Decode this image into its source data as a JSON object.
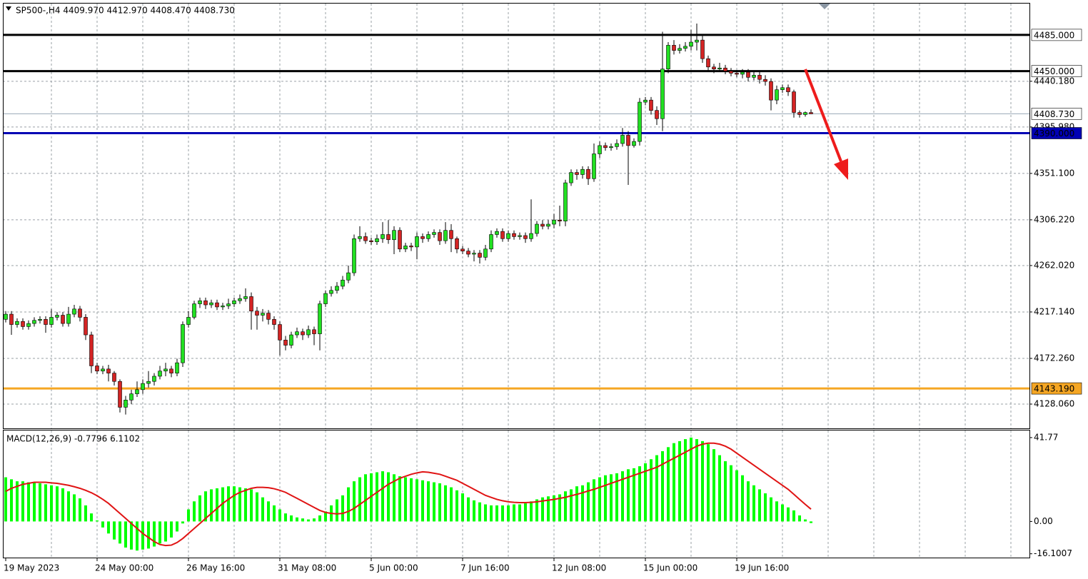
{
  "chart_data": [
    {
      "type": "candlestick",
      "title": "SP500-,H4 4409.970 4412.970 4408.470 4408.730",
      "categories": [
        "19 May 2023",
        null,
        null,
        null,
        null,
        null,
        null,
        null,
        null,
        null,
        null,
        null,
        null,
        null,
        null,
        null,
        "24 May 00:00",
        null,
        null,
        null,
        null,
        null,
        null,
        null,
        null,
        null,
        null,
        null,
        null,
        null,
        null,
        null,
        "26 May 16:00",
        null,
        null,
        null,
        null,
        null,
        null,
        null,
        null,
        null,
        null,
        null,
        null,
        null,
        null,
        null,
        "31 May 08:00",
        null,
        null,
        null,
        null,
        null,
        null,
        null,
        null,
        null,
        null,
        null,
        null,
        null,
        null,
        null,
        "5 Jun 00:00",
        null,
        null,
        null,
        null,
        null,
        null,
        null,
        null,
        null,
        null,
        null,
        null,
        null,
        null,
        null,
        "7 Jun 16:00",
        null,
        null,
        null,
        null,
        null,
        null,
        null,
        null,
        null,
        null,
        null,
        null,
        null,
        null,
        null,
        "12 Jun 08:00",
        null,
        null,
        null,
        null,
        null,
        null,
        null,
        null,
        null,
        null,
        null,
        null,
        null,
        null,
        null,
        "15 Jun 00:00",
        null,
        null,
        null,
        null,
        null,
        null,
        null,
        null,
        null,
        null,
        null,
        null,
        null,
        null,
        null,
        "19 Jun 16:00",
        null,
        null,
        null,
        null,
        null,
        null,
        null,
        null,
        null,
        null,
        null,
        null,
        null
      ],
      "open": [
        4210,
        4215,
        4205,
        4208,
        4203,
        4206,
        4209,
        4210,
        4205,
        4212,
        4214,
        4206,
        4215,
        4220,
        4212,
        4195,
        4165,
        4160,
        4162,
        4158,
        4150,
        4125,
        4132,
        4138,
        4142,
        4148,
        4150,
        4155,
        4160,
        4162,
        4158,
        4168,
        4205,
        4212,
        4225,
        4228,
        4224,
        4226,
        4222,
        4223,
        4225,
        4228,
        4230,
        4232,
        4218,
        4214,
        4216,
        4210,
        4205,
        4190,
        4185,
        4195,
        4198,
        4195,
        4200,
        4196,
        4225,
        4235,
        4238,
        4242,
        4248,
        4255,
        4288,
        4290,
        4286,
        4285,
        4288,
        4292,
        4287,
        4296,
        4278,
        4281,
        4280,
        4290,
        4288,
        4292,
        4294,
        4286,
        4296,
        4288,
        4278,
        4276,
        4273,
        4274,
        4270,
        4278,
        4292,
        4295,
        4288,
        4293,
        4290,
        4291,
        4288,
        4293,
        4302,
        4300,
        4302,
        4306,
        4305,
        4342,
        4352,
        4350,
        4355,
        4346,
        4370,
        4378,
        4376,
        4377,
        4380,
        4388,
        4378,
        4382,
        4420,
        4422,
        4412,
        4404,
        4452,
        4475,
        4470,
        4472,
        4474,
        4478,
        4480,
        4462,
        4454,
        4452,
        4453,
        4450,
        4448,
        4447,
        4449,
        4444,
        4446,
        4442,
        4440,
        4422,
        4432,
        4434,
        4430,
        4410,
        4408,
        4409.97
      ],
      "high": [
        4218,
        4218,
        4211,
        4211,
        4209,
        4212,
        4213,
        4213,
        4220,
        4217,
        4217,
        4222,
        4224,
        4223,
        4215,
        4198,
        4168,
        4165,
        4166,
        4160,
        4152,
        4136,
        4142,
        4150,
        4152,
        4160,
        4158,
        4165,
        4168,
        4165,
        4172,
        4208,
        4218,
        4228,
        4231,
        4231,
        4229,
        4229,
        4226,
        4230,
        4231,
        4234,
        4240,
        4236,
        4222,
        4220,
        4219,
        4213,
        4208,
        4194,
        4198,
        4202,
        4201,
        4204,
        4203,
        4228,
        4238,
        4242,
        4246,
        4252,
        4262,
        4292,
        4300,
        4294,
        4289,
        4292,
        4304,
        4306,
        4300,
        4299,
        4284,
        4284,
        4294,
        4293,
        4295,
        4297,
        4297,
        4304,
        4302,
        4290,
        4281,
        4279,
        4277,
        4277,
        4282,
        4296,
        4298,
        4298,
        4296,
        4296,
        4294,
        4294,
        4326,
        4305,
        4306,
        4306,
        4312,
        4320,
        4345,
        4355,
        4355,
        4358,
        4358,
        4380,
        4382,
        4381,
        4380,
        4384,
        4395,
        4392,
        4385,
        4424,
        4425,
        4425,
        4416,
        4488,
        4478,
        4480,
        4476,
        4478,
        4490,
        4496,
        4484,
        4465,
        4457,
        4458,
        4456,
        4453,
        4451,
        4452,
        4452,
        4449,
        4449,
        4446,
        4443,
        4436,
        4437,
        4437,
        4432,
        4412,
        4411,
        4412.97
      ],
      "low": [
        4207,
        4195,
        4202,
        4200,
        4200,
        4203,
        4206,
        4197,
        4202,
        4209,
        4203,
        4203,
        4212,
        4208,
        4190,
        4158,
        4157,
        4157,
        4150,
        4146,
        4120,
        4118,
        4128,
        4135,
        4138,
        4144,
        4146,
        4152,
        4155,
        4154,
        4155,
        4164,
        4202,
        4210,
        4221,
        4220,
        4221,
        4219,
        4219,
        4220,
        4222,
        4225,
        4227,
        4200,
        4200,
        4208,
        4205,
        4200,
        4175,
        4180,
        4182,
        4192,
        4190,
        4192,
        4185,
        4180,
        4222,
        4232,
        4235,
        4239,
        4245,
        4252,
        4285,
        4283,
        4282,
        4282,
        4284,
        4283,
        4273,
        4275,
        4275,
        4276,
        4268,
        4284,
        4285,
        4289,
        4282,
        4283,
        4275,
        4274,
        4273,
        4270,
        4266,
        4264,
        4267,
        4275,
        4289,
        4285,
        4285,
        4287,
        4287,
        4284,
        4285,
        4290,
        4297,
        4297,
        4298,
        4300,
        4300,
        4339,
        4345,
        4346,
        4340,
        4343,
        4366,
        4373,
        4373,
        4374,
        4377,
        4340,
        4376,
        4378,
        4417,
        4408,
        4398,
        4392,
        4448,
        4466,
        4467,
        4469,
        4470,
        4470,
        4458,
        4450,
        4448,
        4449,
        4447,
        4445,
        4444,
        4443,
        4440,
        4441,
        4438,
        4436,
        4412,
        4418,
        4429,
        4426,
        4405,
        4405,
        4406,
        4408.47
      ],
      "close": [
        4215,
        4205,
        4208,
        4203,
        4206,
        4209,
        4210,
        4205,
        4212,
        4214,
        4206,
        4215,
        4220,
        4212,
        4195,
        4165,
        4160,
        4162,
        4158,
        4150,
        4125,
        4132,
        4138,
        4142,
        4148,
        4150,
        4155,
        4160,
        4162,
        4158,
        4168,
        4205,
        4212,
        4225,
        4228,
        4224,
        4226,
        4222,
        4223,
        4225,
        4228,
        4230,
        4232,
        4218,
        4214,
        4216,
        4210,
        4205,
        4190,
        4185,
        4195,
        4198,
        4195,
        4200,
        4196,
        4225,
        4235,
        4238,
        4242,
        4248,
        4255,
        4288,
        4290,
        4286,
        4285,
        4288,
        4292,
        4287,
        4296,
        4278,
        4281,
        4280,
        4290,
        4288,
        4292,
        4294,
        4286,
        4296,
        4288,
        4278,
        4276,
        4273,
        4274,
        4270,
        4278,
        4292,
        4295,
        4288,
        4293,
        4290,
        4291,
        4288,
        4293,
        4302,
        4300,
        4302,
        4306,
        4305,
        4342,
        4352,
        4350,
        4355,
        4346,
        4370,
        4378,
        4376,
        4377,
        4380,
        4388,
        4378,
        4382,
        4420,
        4422,
        4412,
        4404,
        4452,
        4475,
        4470,
        4472,
        4474,
        4478,
        4480,
        4462,
        4454,
        4452,
        4453,
        4450,
        4448,
        4447,
        4449,
        4444,
        4446,
        4442,
        4440,
        4422,
        4432,
        4434,
        4430,
        4410,
        4408,
        4409.97,
        4408.73
      ],
      "up_color": "#22e022",
      "down_color": "#d42424",
      "ylim": [
        4104.6,
        4515.3
      ],
      "yticks": [
        {
          "value": 4440.18,
          "label": "4440.180"
        },
        {
          "value": 4395.98,
          "label": "4395.980"
        },
        {
          "value": 4351.1,
          "label": "4351.100"
        },
        {
          "value": 4306.22,
          "label": "4306.220"
        },
        {
          "value": 4262.02,
          "label": "4262.020"
        },
        {
          "value": 4217.14,
          "label": "4217.140"
        },
        {
          "value": 4172.26,
          "label": "4172.260"
        },
        {
          "value": 4128.06,
          "label": "4128.060"
        }
      ],
      "grid": true,
      "levels": [
        {
          "value": 4485,
          "label": "4485.000",
          "color": "#000000"
        },
        {
          "value": 4450,
          "label": "4450.000",
          "color": "#000000"
        },
        {
          "value": 4390,
          "label": "4390.000",
          "color": "#0000b4"
        },
        {
          "value": 4143.19,
          "label": "4143.190",
          "color": "#f5a623"
        }
      ],
      "current_price": {
        "value": 4408.73,
        "label": "4408.730",
        "color": "#9aa8b6"
      }
    },
    {
      "type": "macd",
      "title": "MACD(12,26,9) -0.7796 6.1102",
      "histogram": [
        22,
        21,
        20,
        20,
        19.5,
        19.5,
        19,
        18.5,
        18,
        17.5,
        16.5,
        15,
        13.5,
        11.5,
        8,
        4,
        0.5,
        -3,
        -6,
        -9,
        -11,
        -13,
        -14,
        -14.5,
        -14,
        -13.5,
        -12.5,
        -11,
        -10,
        -8,
        -5,
        -1,
        6,
        10,
        13,
        15,
        16,
        16.5,
        17,
        17.5,
        17.5,
        17,
        16.5,
        16,
        14.5,
        12,
        10,
        8,
        6,
        4,
        3,
        2,
        1.5,
        1,
        1.5,
        3,
        5,
        8,
        11,
        13,
        17,
        20,
        22,
        23.5,
        24,
        24.5,
        25,
        24.5,
        23.5,
        22.5,
        22,
        21.5,
        21,
        20.5,
        20,
        19.5,
        19,
        18,
        17,
        15.5,
        14,
        12,
        10.5,
        9.5,
        8.5,
        8,
        8,
        8,
        8,
        8.5,
        8.5,
        9,
        10,
        11,
        12,
        12.5,
        13,
        13.5,
        15,
        16,
        17.5,
        18,
        19.5,
        21,
        22,
        23,
        23.5,
        24,
        25,
        26,
        26.5,
        27.5,
        29,
        31,
        33,
        35,
        37,
        39,
        40,
        41,
        41.77,
        41,
        40,
        38.5,
        36,
        33,
        30,
        28,
        25.5,
        23,
        20,
        18,
        16,
        14,
        12,
        10,
        8.5,
        7,
        5.5,
        3,
        1,
        -0.7796
      ],
      "signal": [
        15,
        16.5,
        17.5,
        18.5,
        19,
        19.5,
        19.5,
        19.5,
        19.2,
        19,
        18.5,
        18,
        17.3,
        16.5,
        15.5,
        14.3,
        12.8,
        11,
        9,
        6.5,
        4,
        1.5,
        -1,
        -3.5,
        -6,
        -8,
        -10,
        -11.5,
        -12,
        -11.8,
        -10.5,
        -8.5,
        -6,
        -3.5,
        -1,
        1.5,
        4,
        6.5,
        9,
        11,
        13,
        14.5,
        15.5,
        16.5,
        17,
        17,
        16.8,
        16.3,
        15.5,
        14.5,
        13,
        11.5,
        10,
        8.5,
        7,
        5.5,
        4.5,
        4,
        3.8,
        4,
        5,
        6.5,
        8.5,
        10.5,
        12.5,
        14.5,
        16.5,
        18.5,
        20,
        21.5,
        22.5,
        23.5,
        24.2,
        24.7,
        24.5,
        24,
        23.5,
        22.5,
        21.5,
        20.5,
        19,
        17.5,
        16,
        14.5,
        13,
        12,
        11,
        10.3,
        9.8,
        9.5,
        9.4,
        9.4,
        9.5,
        9.8,
        10.2,
        10.6,
        11,
        11.5,
        12,
        12.8,
        13.5,
        14.3,
        15.2,
        16,
        17,
        18,
        19,
        20,
        21,
        22,
        23,
        24,
        25,
        26,
        27,
        28.5,
        30,
        31.5,
        33,
        34.5,
        36,
        37.5,
        38.5,
        39,
        39,
        38.5,
        37.5,
        36,
        34,
        32,
        30,
        28,
        26,
        24,
        22,
        20,
        18,
        16,
        13.5,
        11,
        8.5,
        6.1102
      ],
      "histogram_color": "#00ff00",
      "signal_color": "#e01414",
      "ylim": [
        -18,
        45.3
      ],
      "yticks": [
        41.77,
        {
          "value": 0,
          "label": "0.00"
        },
        -16.1007
      ]
    }
  ]
}
